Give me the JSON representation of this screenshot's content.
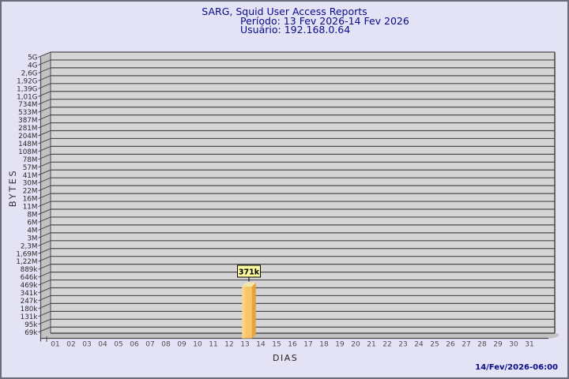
{
  "header": {
    "title": "SARG, Squid User Access Reports",
    "period": "Período: 13 Fev 2026-14 Fev 2026",
    "user": "Usuário: 192.168.0.64"
  },
  "footer": {
    "generated_at": "14/Fev/2026-06:00"
  },
  "chart_data": {
    "type": "bar",
    "title": "SARG, Squid User Access Reports",
    "subtitle_period": "Período: 13 Fev 2026-14 Fev 2026",
    "subtitle_user": "Usuário: 192.168.0.64",
    "xlabel": "DIAS",
    "ylabel": "BYTES",
    "y_scale": "log",
    "grid": "horizontal",
    "x_categories": [
      "01",
      "02",
      "03",
      "04",
      "05",
      "06",
      "07",
      "08",
      "09",
      "10",
      "11",
      "12",
      "13",
      "14",
      "15",
      "16",
      "17",
      "18",
      "19",
      "20",
      "21",
      "22",
      "23",
      "24",
      "25",
      "26",
      "27",
      "28",
      "29",
      "30",
      "31"
    ],
    "y_tick_labels": [
      "5G",
      "4G",
      "2,6G",
      "1,92G",
      "1,39G",
      "1,01G",
      "734M",
      "533M",
      "387M",
      "281M",
      "204M",
      "148M",
      "108M",
      "78M",
      "57M",
      "41M",
      "30M",
      "22M",
      "16M",
      "11M",
      "8M",
      "6M",
      "4M",
      "3M",
      "2,3M",
      "1,69M",
      "1,22M",
      "889k",
      "646k",
      "469k",
      "341k",
      "247k",
      "180k",
      "131k",
      "95k",
      "69k"
    ],
    "bars": [
      {
        "day": "13",
        "value_label": "371k",
        "value_bytes": 371000
      }
    ],
    "colors": {
      "background": "#E3E3F5",
      "plot_background": "#D5D5D5",
      "wall": "#C2C2C2",
      "gridline": "#4B4B4B",
      "axis_text": "#2B2B2B",
      "day_text": "#4E4E4E",
      "bar_front": "#F9C366",
      "bar_front_light": "#FDD98F",
      "bar_side": "#E7A23D",
      "bar_top": "#F4E7AE",
      "annotation_background": "#FBFB9E",
      "annotation_border": "#000000",
      "title_color": "#0A0A8C"
    }
  }
}
